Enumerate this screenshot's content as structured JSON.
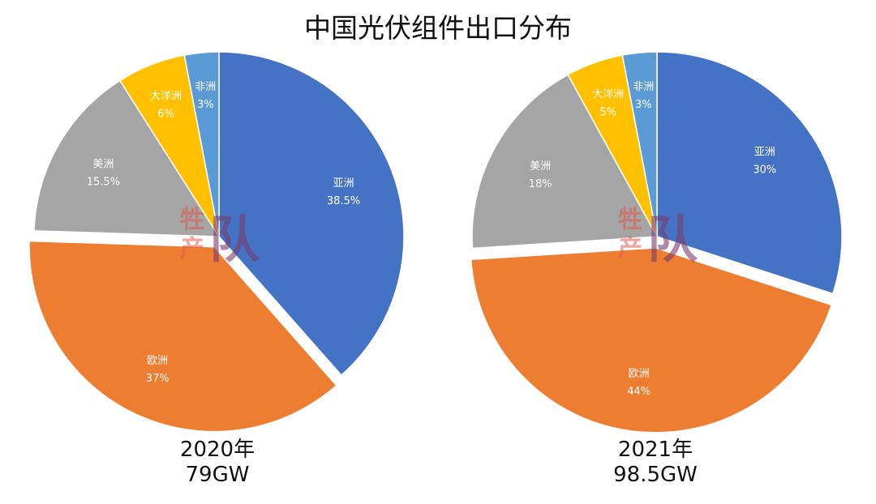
{
  "title": "中国光伏组件出口分布",
  "watermark": {
    "line1": "牲",
    "line2": "产",
    "big": "队"
  },
  "chart_data": [
    {
      "type": "pie",
      "caption_year": "2020年",
      "caption_total": "79GW",
      "slices": [
        {
          "name": "亚洲",
          "value": 38.5,
          "label": "38.5%",
          "color": "#4472c4",
          "exploded": false
        },
        {
          "name": "欧洲",
          "value": 37,
          "label": "37%",
          "color": "#ed7d31",
          "exploded": true
        },
        {
          "name": "美洲",
          "value": 15.5,
          "label": "15.5%",
          "color": "#a5a5a5",
          "exploded": false
        },
        {
          "name": "大洋洲",
          "value": 6,
          "label": "6%",
          "color": "#ffc000",
          "exploded": false
        },
        {
          "name": "非洲",
          "value": 3,
          "label": "3%",
          "color": "#5b9bd5",
          "exploded": false
        }
      ]
    },
    {
      "type": "pie",
      "caption_year": "2021年",
      "caption_total": "98.5GW",
      "slices": [
        {
          "name": "亚洲",
          "value": 30,
          "label": "30%",
          "color": "#4472c4",
          "exploded": false
        },
        {
          "name": "欧洲",
          "value": 44,
          "label": "44%",
          "color": "#ed7d31",
          "exploded": true
        },
        {
          "name": "美洲",
          "value": 18,
          "label": "18%",
          "color": "#a5a5a5",
          "exploded": false
        },
        {
          "name": "大洋洲",
          "value": 5,
          "label": "5%",
          "color": "#ffc000",
          "exploded": false
        },
        {
          "name": "非洲",
          "value": 3,
          "label": "3%",
          "color": "#5b9bd5",
          "exploded": false
        }
      ]
    }
  ]
}
